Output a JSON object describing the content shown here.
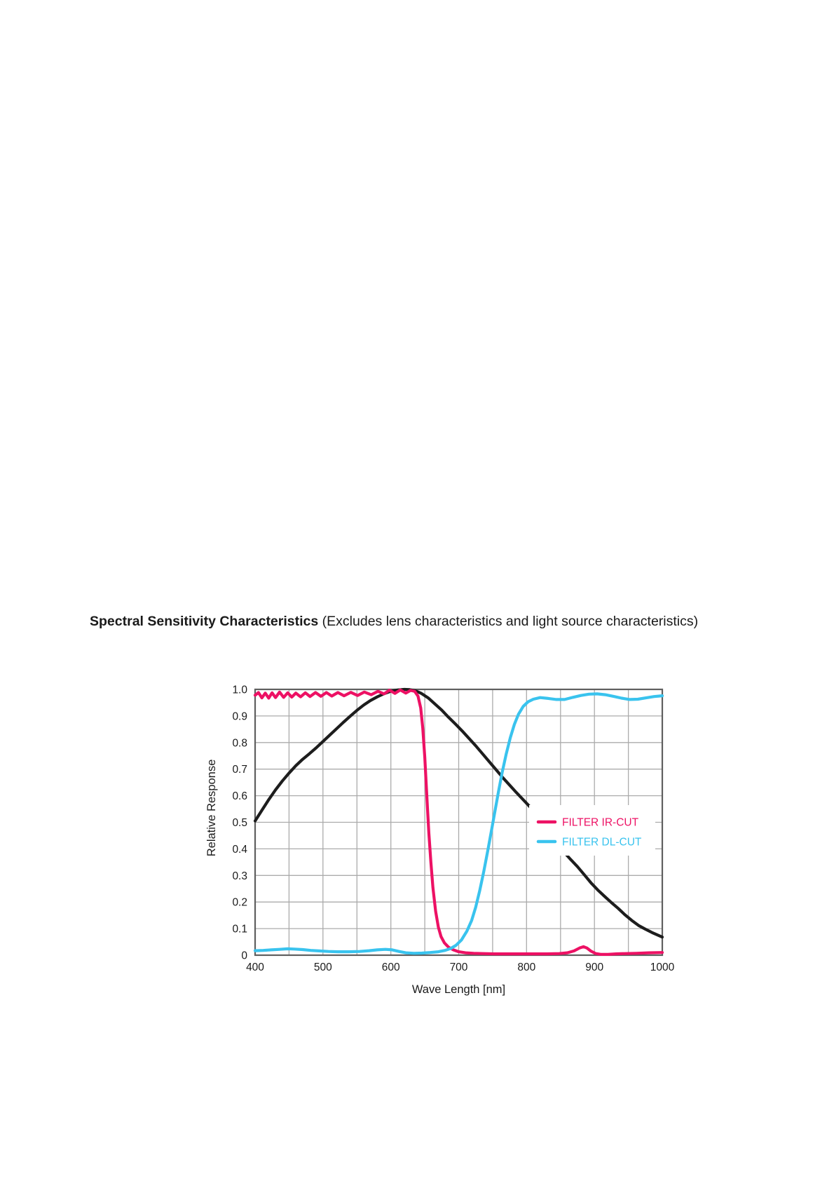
{
  "title": {
    "main": "Spectral Sensitivity Characteristics",
    "note": " (Excludes lens characteristics and light source characteristics)"
  },
  "chart_data": {
    "type": "line",
    "title": "Spectral Sensitivity Characteristics (Excludes lens characteristics and light source characteristics)",
    "xlabel": "Wave Length [nm]",
    "ylabel": "Relative Response",
    "xlim": [
      400,
      1000
    ],
    "ylim": [
      0,
      1.0
    ],
    "grid": true,
    "x_grid_step": 50,
    "x_ticks": [
      400,
      500,
      600,
      700,
      800,
      900,
      1000
    ],
    "x_tick_labels": [
      "400",
      "500",
      "600",
      "700",
      "800",
      "900",
      "1000"
    ],
    "y_ticks": [
      0,
      0.1,
      0.2,
      0.3,
      0.4,
      0.5,
      0.6,
      0.7,
      0.8,
      0.9,
      1.0
    ],
    "y_tick_labels": [
      "0",
      "0.1",
      "0.2",
      "0.3",
      "0.4",
      "0.5",
      "0.6",
      "0.7",
      "0.8",
      "0.9",
      "1.0"
    ],
    "style": {
      "grid_color": "#ababab",
      "border_color": "#5f5f5f",
      "text_color": "#1a1a1a",
      "background": "#ffffff"
    },
    "legend": {
      "position": "inside-right",
      "box": {
        "x": 755,
        "y": 1148,
        "w": 180,
        "h": 72
      },
      "row_offsets": [
        24,
        52
      ],
      "entries": [
        {
          "id": "filter-ir-cut",
          "label": "FILTER IR-CUT",
          "color": "#ed1164"
        },
        {
          "id": "filter-dl-cut",
          "label": "FILTER DL-CUT",
          "color": "#39c3ee"
        }
      ]
    },
    "series": [
      {
        "id": "sensor",
        "name": "Sensor spectral sensitivity (unlabeled black curve)",
        "color": "#1d1d1d",
        "in_legend": false,
        "points": [
          [
            400,
            0.505
          ],
          [
            410,
            0.545
          ],
          [
            420,
            0.585
          ],
          [
            430,
            0.622
          ],
          [
            440,
            0.655
          ],
          [
            450,
            0.685
          ],
          [
            460,
            0.713
          ],
          [
            470,
            0.737
          ],
          [
            480,
            0.758
          ],
          [
            490,
            0.78
          ],
          [
            500,
            0.804
          ],
          [
            510,
            0.828
          ],
          [
            520,
            0.852
          ],
          [
            530,
            0.876
          ],
          [
            540,
            0.899
          ],
          [
            550,
            0.921
          ],
          [
            560,
            0.941
          ],
          [
            570,
            0.958
          ],
          [
            580,
            0.972
          ],
          [
            590,
            0.984
          ],
          [
            600,
            0.993
          ],
          [
            610,
            0.998
          ],
          [
            620,
            1.0
          ],
          [
            628,
            0.999
          ],
          [
            636,
            0.995
          ],
          [
            645,
            0.985
          ],
          [
            655,
            0.968
          ],
          [
            665,
            0.945
          ],
          [
            675,
            0.922
          ],
          [
            685,
            0.895
          ],
          [
            695,
            0.87
          ],
          [
            705,
            0.844
          ],
          [
            715,
            0.816
          ],
          [
            725,
            0.788
          ],
          [
            735,
            0.758
          ],
          [
            745,
            0.728
          ],
          [
            755,
            0.698
          ],
          [
            765,
            0.668
          ],
          [
            775,
            0.64
          ],
          [
            785,
            0.612
          ],
          [
            795,
            0.585
          ],
          [
            805,
            0.558
          ],
          [
            815,
            0.522
          ],
          [
            825,
            0.487
          ],
          [
            835,
            0.452
          ],
          [
            845,
            0.418
          ],
          [
            855,
            0.388
          ],
          [
            865,
            0.36
          ],
          [
            875,
            0.333
          ],
          [
            885,
            0.303
          ],
          [
            895,
            0.272
          ],
          [
            905,
            0.245
          ],
          [
            915,
            0.221
          ],
          [
            925,
            0.198
          ],
          [
            935,
            0.176
          ],
          [
            945,
            0.152
          ],
          [
            955,
            0.131
          ],
          [
            965,
            0.112
          ],
          [
            975,
            0.098
          ],
          [
            985,
            0.085
          ],
          [
            1000,
            0.068
          ]
        ]
      },
      {
        "id": "filter-ir-cut",
        "name": "FILTER IR-CUT",
        "color": "#ed1164",
        "in_legend": true,
        "points": [
          [
            400,
            0.978
          ],
          [
            405,
            0.988
          ],
          [
            410,
            0.968
          ],
          [
            415,
            0.986
          ],
          [
            420,
            0.967
          ],
          [
            425,
            0.987
          ],
          [
            430,
            0.969
          ],
          [
            436,
            0.99
          ],
          [
            442,
            0.97
          ],
          [
            448,
            0.987
          ],
          [
            454,
            0.971
          ],
          [
            460,
            0.986
          ],
          [
            467,
            0.972
          ],
          [
            474,
            0.987
          ],
          [
            481,
            0.973
          ],
          [
            489,
            0.988
          ],
          [
            497,
            0.974
          ],
          [
            505,
            0.988
          ],
          [
            513,
            0.975
          ],
          [
            522,
            0.988
          ],
          [
            531,
            0.976
          ],
          [
            541,
            0.989
          ],
          [
            551,
            0.977
          ],
          [
            561,
            0.99
          ],
          [
            571,
            0.98
          ],
          [
            581,
            0.993
          ],
          [
            590,
            0.983
          ],
          [
            598,
            0.997
          ],
          [
            606,
            0.985
          ],
          [
            614,
            0.998
          ],
          [
            622,
            0.986
          ],
          [
            629,
            0.996
          ],
          [
            635,
            0.993
          ],
          [
            640,
            0.975
          ],
          [
            644,
            0.93
          ],
          [
            647,
            0.855
          ],
          [
            650,
            0.745
          ],
          [
            652,
            0.65
          ],
          [
            654,
            0.55
          ],
          [
            656,
            0.46
          ],
          [
            659,
            0.35
          ],
          [
            662,
            0.255
          ],
          [
            666,
            0.165
          ],
          [
            670,
            0.105
          ],
          [
            674,
            0.07
          ],
          [
            679,
            0.046
          ],
          [
            685,
            0.03
          ],
          [
            692,
            0.02
          ],
          [
            700,
            0.013
          ],
          [
            710,
            0.009
          ],
          [
            722,
            0.007
          ],
          [
            736,
            0.006
          ],
          [
            752,
            0.005
          ],
          [
            770,
            0.005
          ],
          [
            790,
            0.005
          ],
          [
            810,
            0.005
          ],
          [
            830,
            0.005
          ],
          [
            848,
            0.006
          ],
          [
            860,
            0.009
          ],
          [
            870,
            0.016
          ],
          [
            878,
            0.027
          ],
          [
            884,
            0.032
          ],
          [
            889,
            0.027
          ],
          [
            895,
            0.015
          ],
          [
            902,
            0.006
          ],
          [
            910,
            0.003
          ],
          [
            920,
            0.003
          ],
          [
            932,
            0.005
          ],
          [
            946,
            0.006
          ],
          [
            962,
            0.007
          ],
          [
            980,
            0.009
          ],
          [
            1000,
            0.01
          ]
        ]
      },
      {
        "id": "filter-dl-cut",
        "name": "FILTER DL-CUT",
        "color": "#39c3ee",
        "in_legend": true,
        "points": [
          [
            400,
            0.017
          ],
          [
            412,
            0.018
          ],
          [
            424,
            0.02
          ],
          [
            436,
            0.022
          ],
          [
            448,
            0.024
          ],
          [
            458,
            0.023
          ],
          [
            470,
            0.021
          ],
          [
            482,
            0.018
          ],
          [
            494,
            0.016
          ],
          [
            508,
            0.014
          ],
          [
            522,
            0.013
          ],
          [
            538,
            0.013
          ],
          [
            554,
            0.014
          ],
          [
            568,
            0.017
          ],
          [
            580,
            0.02
          ],
          [
            592,
            0.022
          ],
          [
            602,
            0.02
          ],
          [
            612,
            0.014
          ],
          [
            622,
            0.009
          ],
          [
            634,
            0.007
          ],
          [
            646,
            0.008
          ],
          [
            658,
            0.01
          ],
          [
            670,
            0.013
          ],
          [
            680,
            0.018
          ],
          [
            688,
            0.025
          ],
          [
            696,
            0.037
          ],
          [
            704,
            0.057
          ],
          [
            712,
            0.09
          ],
          [
            719,
            0.13
          ],
          [
            725,
            0.18
          ],
          [
            731,
            0.243
          ],
          [
            737,
            0.315
          ],
          [
            743,
            0.395
          ],
          [
            749,
            0.478
          ],
          [
            754,
            0.55
          ],
          [
            759,
            0.62
          ],
          [
            764,
            0.687
          ],
          [
            770,
            0.757
          ],
          [
            776,
            0.818
          ],
          [
            782,
            0.868
          ],
          [
            788,
            0.906
          ],
          [
            795,
            0.936
          ],
          [
            802,
            0.953
          ],
          [
            810,
            0.963
          ],
          [
            820,
            0.969
          ],
          [
            832,
            0.966
          ],
          [
            844,
            0.962
          ],
          [
            856,
            0.962
          ],
          [
            868,
            0.97
          ],
          [
            880,
            0.977
          ],
          [
            892,
            0.982
          ],
          [
            904,
            0.983
          ],
          [
            916,
            0.98
          ],
          [
            928,
            0.974
          ],
          [
            940,
            0.967
          ],
          [
            952,
            0.962
          ],
          [
            964,
            0.963
          ],
          [
            976,
            0.968
          ],
          [
            988,
            0.973
          ],
          [
            1000,
            0.976
          ]
        ]
      }
    ]
  }
}
